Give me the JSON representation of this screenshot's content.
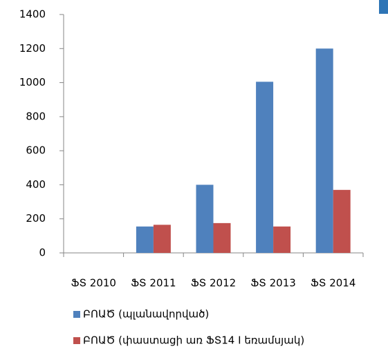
{
  "chart_data": {
    "type": "bar",
    "categories": [
      "ՖՏ 2010",
      "ՖՏ 2011",
      "ՖՏ 2012",
      "ՖՏ 2013",
      "ՖՏ 2014"
    ],
    "series": [
      {
        "name": "ԲՈԱԾ (պլանավորված)",
        "color": "#4f81bd",
        "values": [
          0,
          155,
          400,
          1005,
          1200
        ]
      },
      {
        "name": "ԲՈԱԾ (փաստացի առ ՖՏ14 I եռամսյակ)",
        "color": "#c0504d",
        "values": [
          0,
          165,
          175,
          155,
          370
        ]
      }
    ],
    "ylim": [
      0,
      1400
    ],
    "yticks": [
      0,
      200,
      400,
      600,
      800,
      1000,
      1200,
      1400
    ],
    "grid": false,
    "legend": "bottom"
  }
}
